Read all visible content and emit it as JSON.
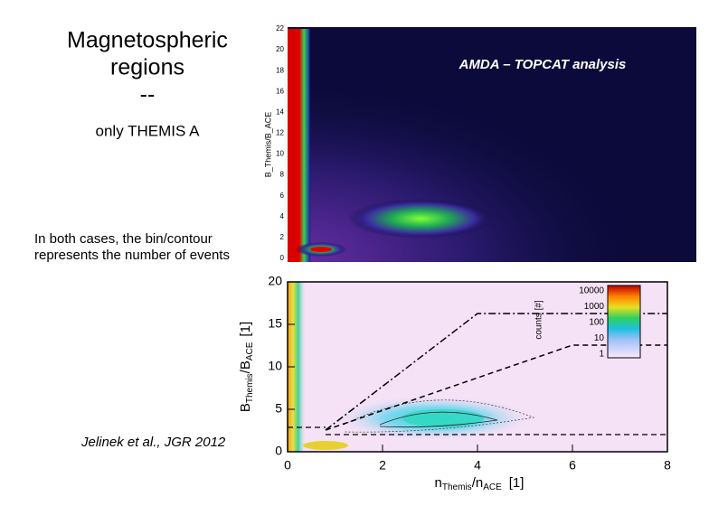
{
  "title": {
    "lines": [
      "Magnetospheric",
      "regions",
      "--"
    ],
    "subtitle": "only THEMIS A"
  },
  "note": [
    "In both cases, the bin/contour",
    "represents the number of events"
  ],
  "citation": "Jelinek et al., JGR 2012",
  "top_plot": {
    "annotation": "AMDA – TOPCAT analysis",
    "y_label": "B_Themis/B_ACE",
    "y_ticks": [
      "0",
      "2",
      "4",
      "6",
      "8",
      "10",
      "12",
      "14",
      "16",
      "18",
      "20",
      "22"
    ]
  },
  "bottom_plot": {
    "y_label": {
      "main": "B",
      "sub1": "Themis",
      "sep": "/B",
      "sub2": "ACE",
      "unit": "[1]"
    },
    "x_label": {
      "main": "n",
      "sub1": "Themis",
      "sep": "/n",
      "sub2": "ACE",
      "unit": "[1]"
    },
    "y_ticks": [
      "0",
      "5",
      "10",
      "15",
      "20"
    ],
    "x_ticks": [
      "0",
      "2",
      "4",
      "6",
      "8"
    ],
    "colorbar": {
      "label": "counts [#]",
      "ticks": [
        "10000",
        "1000",
        "100",
        "10",
        "1"
      ]
    }
  }
}
